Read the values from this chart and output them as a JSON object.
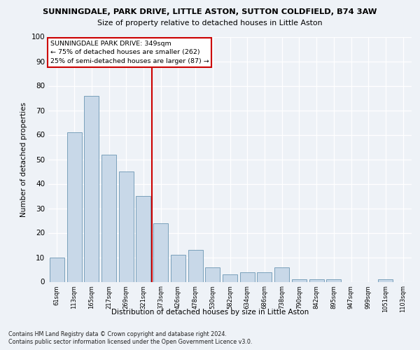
{
  "title_line1": "SUNNINGDALE, PARK DRIVE, LITTLE ASTON, SUTTON COLDFIELD, B74 3AW",
  "title_line2": "Size of property relative to detached houses in Little Aston",
  "xlabel": "Distribution of detached houses by size in Little Aston",
  "ylabel": "Number of detached properties",
  "categories": [
    "61sqm",
    "113sqm",
    "165sqm",
    "217sqm",
    "269sqm",
    "321sqm",
    "373sqm",
    "426sqm",
    "478sqm",
    "530sqm",
    "582sqm",
    "634sqm",
    "686sqm",
    "738sqm",
    "790sqm",
    "842sqm",
    "895sqm",
    "947sqm",
    "999sqm",
    "1051sqm",
    "1103sqm"
  ],
  "values": [
    10,
    61,
    76,
    52,
    45,
    35,
    24,
    11,
    13,
    6,
    3,
    4,
    4,
    6,
    1,
    1,
    1,
    0,
    0,
    1,
    0
  ],
  "bar_color": "#c8d8e8",
  "bar_edge_color": "#7aa0bb",
  "vline_color": "#cc0000",
  "annotation_box_text": "SUNNINGDALE PARK DRIVE: 349sqm\n← 75% of detached houses are smaller (262)\n25% of semi-detached houses are larger (87) →",
  "annotation_box_color": "#cc0000",
  "ylim": [
    0,
    100
  ],
  "yticks": [
    0,
    10,
    20,
    30,
    40,
    50,
    60,
    70,
    80,
    90,
    100
  ],
  "background_color": "#eef2f7",
  "grid_color": "#ffffff",
  "footer_line1": "Contains HM Land Registry data © Crown copyright and database right 2024.",
  "footer_line2": "Contains public sector information licensed under the Open Government Licence v3.0."
}
